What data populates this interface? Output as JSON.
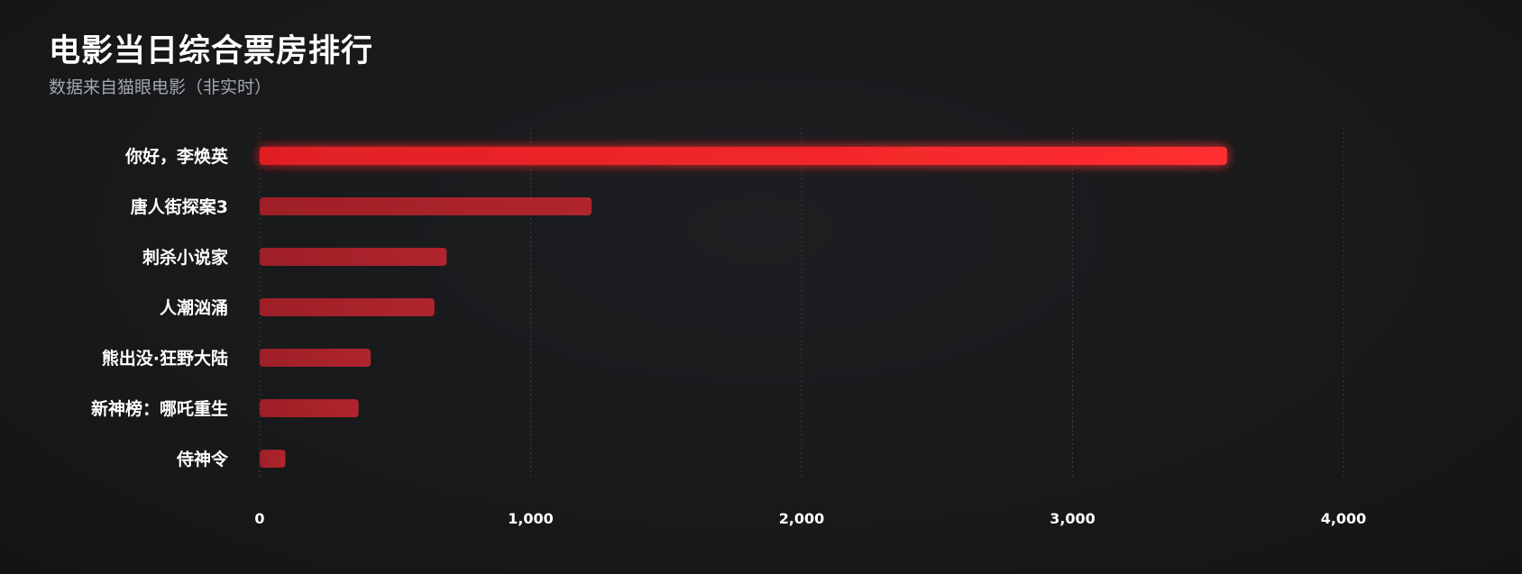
{
  "header": {
    "title": "电影当日综合票房排行",
    "subtitle": "数据来自猫眼电影（非实时）"
  },
  "colors": {
    "background": "#161819",
    "top_bar": "#ff2a2a",
    "other_bars": "#a8232b",
    "grid": "#3a3d42",
    "text": "#ffffff",
    "subtitle": "#a3a6ab"
  },
  "chart_data": {
    "type": "bar",
    "orientation": "horizontal",
    "title": "电影当日综合票房排行",
    "subtitle": "数据来自猫眼电影（非实时）",
    "xlabel": "",
    "ylabel": "",
    "categories": [
      "你好，李焕英",
      "唐人街探案3",
      "刺杀小说家",
      "人潮汹涌",
      "熊出没·狂野大陆",
      "新神榜：哪吒重生",
      "侍神令"
    ],
    "values": [
      3570,
      1225,
      690,
      645,
      410,
      365,
      95
    ],
    "xlim": [
      0,
      4000
    ],
    "xticks": [
      0,
      1000,
      2000,
      3000,
      4000
    ],
    "xtick_labels": [
      "0",
      "1,000",
      "2,000",
      "3,000",
      "4,000"
    ],
    "grid": "vertical dashed",
    "legend": "none"
  }
}
